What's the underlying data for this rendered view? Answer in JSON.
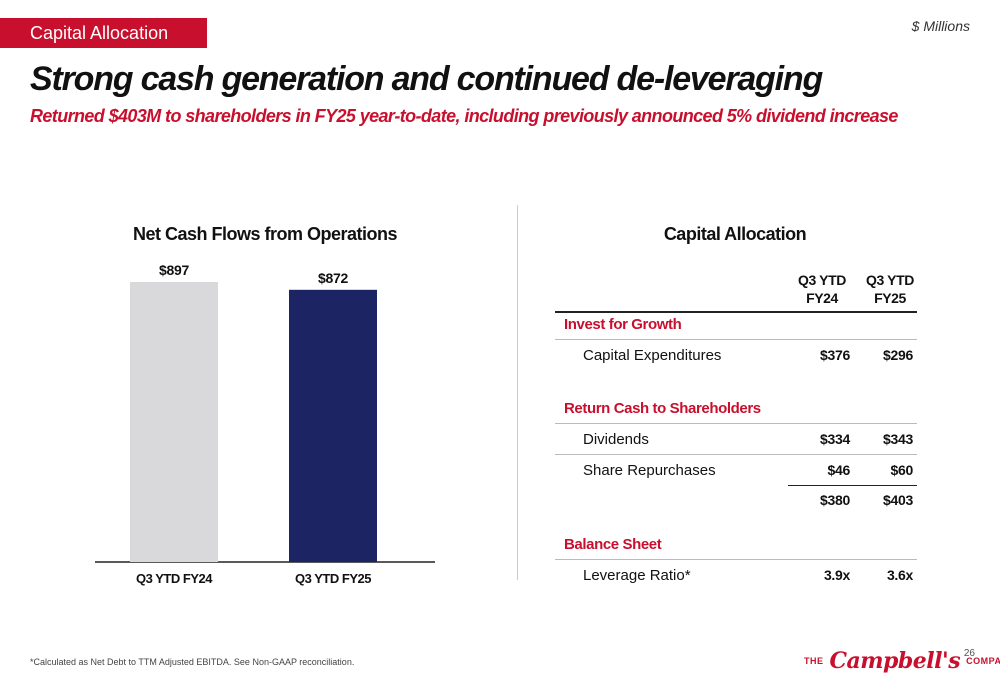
{
  "header": {
    "tag": "Capital Allocation",
    "units": "$ Millions",
    "title": "Strong cash generation and continued de-leveraging",
    "subtitle": "Returned $403M to shareholders in FY25 year-to-date, including previously announced 5% dividend increase"
  },
  "chart_data": {
    "type": "bar",
    "title": "Net Cash Flows from Operations",
    "categories": [
      "Q3 YTD FY24",
      "Q3 YTD FY25"
    ],
    "values": [
      897,
      872
    ],
    "value_labels": [
      "$897",
      "$872"
    ],
    "colors": [
      "#d9d9dc",
      "#1c2464"
    ],
    "xlabel": "",
    "ylabel": "",
    "ylim": [
      0,
      897
    ],
    "grid": false,
    "legend": "none"
  },
  "table": {
    "title": "Capital Allocation",
    "columns": [
      {
        "line1": "Q3 YTD",
        "line2": "FY24"
      },
      {
        "line1": "Q3 YTD",
        "line2": "FY25"
      }
    ],
    "sections": [
      {
        "name": "Invest for Growth",
        "rows": [
          {
            "label": "Capital Expenditures",
            "values": [
              "$376",
              "$296"
            ]
          }
        ]
      },
      {
        "name": "Return Cash to Shareholders",
        "rows": [
          {
            "label": "Dividends",
            "values": [
              "$334",
              "$343"
            ]
          },
          {
            "label": "Share Repurchases",
            "values": [
              "$46",
              "$60"
            ]
          }
        ],
        "total": [
          "$380",
          "$403"
        ]
      },
      {
        "name": "Balance Sheet",
        "rows": [
          {
            "label": "Leverage Ratio*",
            "values": [
              "3.9x",
              "3.6x"
            ]
          }
        ]
      }
    ]
  },
  "footer": {
    "footnote": "*Calculated as Net Debt to TTM Adjusted EBITDA. See Non-GAAP reconciliation.",
    "page_number": "26",
    "logo": {
      "prefix": "THE",
      "name": "Campbell's",
      "suffix": "COMPANY"
    }
  }
}
